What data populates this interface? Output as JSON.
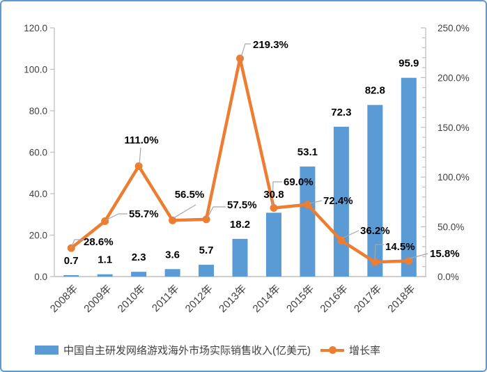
{
  "chart_data": {
    "type": "bar+line",
    "title": "",
    "categories": [
      "2008年",
      "2009年",
      "2010年",
      "2011年",
      "2012年",
      "2013年",
      "2014年",
      "2015年",
      "2016年",
      "2017年",
      "2018年"
    ],
    "series": [
      {
        "name": "中国自主研发网络游戏海外市场实际销售收入(亿美元)",
        "type": "bar",
        "axis": "left",
        "color": "#5B9BD5",
        "values": [
          0.7,
          1.1,
          2.3,
          3.6,
          5.7,
          18.2,
          30.8,
          53.1,
          72.3,
          82.8,
          95.9
        ],
        "data_labels": [
          "0.7",
          "1.1",
          "2.3",
          "3.6",
          "5.7",
          "18.2",
          "30.8",
          "53.1",
          "72.3",
          "82.8",
          "95.9"
        ]
      },
      {
        "name": "增长率",
        "type": "line",
        "axis": "right",
        "color": "#ED7D31",
        "values": [
          28.6,
          55.7,
          111.0,
          56.5,
          57.5,
          219.3,
          69.0,
          72.4,
          36.2,
          14.5,
          15.8
        ],
        "data_labels": [
          "28.6%",
          "55.7%",
          "111.0%",
          "56.5%",
          "57.5%",
          "219.3%",
          "69.0%",
          "72.4%",
          "36.2%",
          "14.5%",
          "15.8%"
        ]
      }
    ],
    "left_axis": {
      "min": 0,
      "max": 120,
      "step": 20,
      "tick_labels": [
        "0.0",
        "20.0",
        "40.0",
        "60.0",
        "80.0",
        "100.0",
        "120.0"
      ]
    },
    "right_axis": {
      "min": 0,
      "max": 250,
      "step": 50,
      "minor_step": 10,
      "tick_labels": [
        "0.0%",
        "50.0%",
        "100.0%",
        "150.0%",
        "200.0%",
        "250.0%"
      ]
    },
    "grid": "off",
    "legend_position": "bottom"
  },
  "legend": {
    "bar_label": "中国自主研发网络游戏海外市场实际销售收入(亿美元)",
    "line_label": "增长率"
  },
  "colors": {
    "bar": "#5B9BD5",
    "line": "#ED7D31",
    "leader": "#A6A6A6",
    "axis": "#BFBFBF",
    "frame_border": "#5B9BD5",
    "data_label_text": "#000000",
    "tick_text": "#404040"
  }
}
